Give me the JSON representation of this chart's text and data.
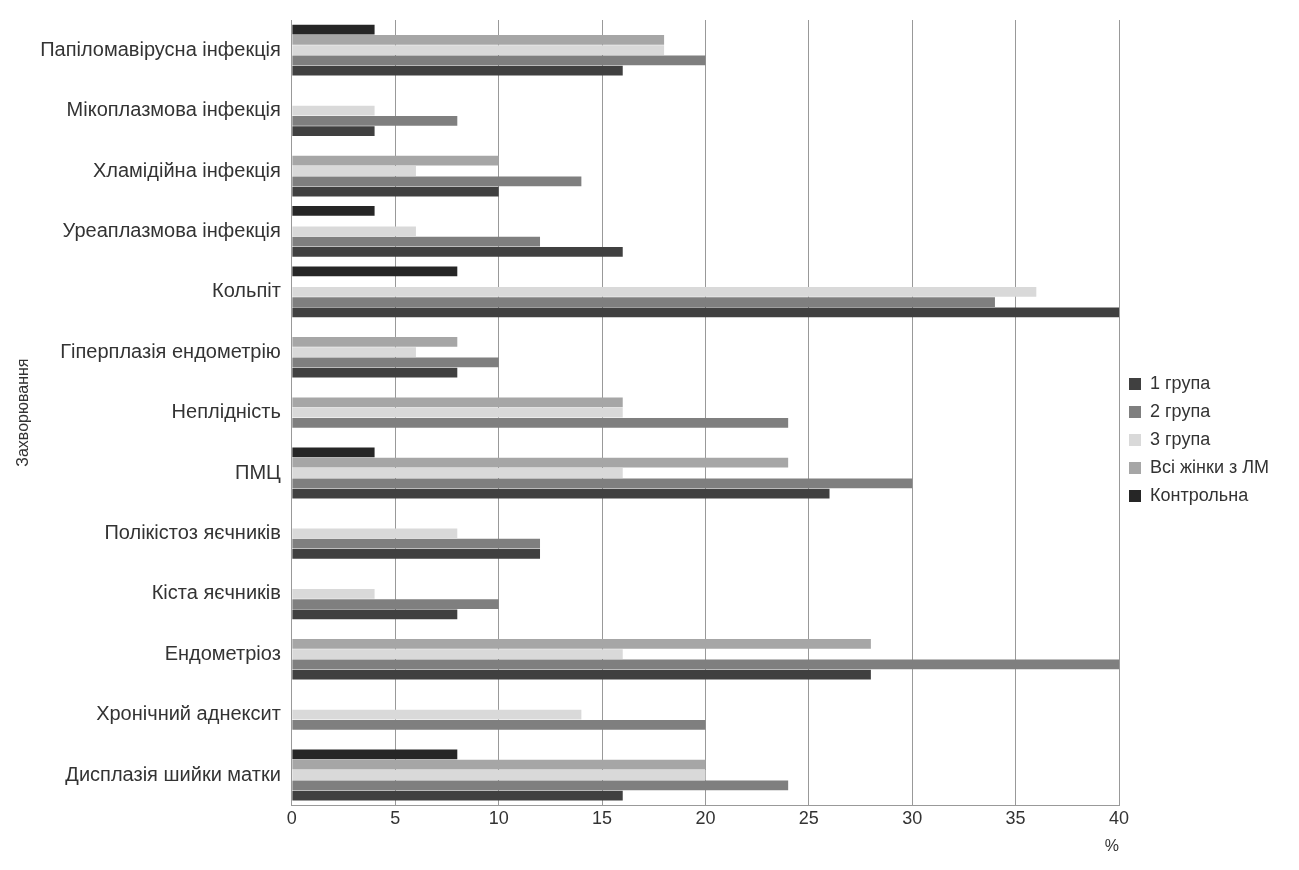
{
  "chart_data": {
    "type": "bar",
    "orientation": "horizontal",
    "ylabel": "Захворювання",
    "xlabel": "%",
    "categories": [
      "Папіломавірусна інфекція",
      "Мікоплазмова інфекція",
      "Хламідійна інфекція",
      "Уреаплазмова інфекція",
      "Кольпіт",
      "Гіперплазія ендометрію",
      "Неплідність",
      "ПМЦ",
      "Полікістоз яєчників",
      "Кіста яєчників",
      "Ендометріоз",
      "Хронічний аднексит",
      "Дисплазія шийки матки"
    ],
    "series": [
      {
        "name": "1 група",
        "color": "#404040",
        "values": [
          16,
          4,
          10,
          16,
          40,
          8,
          0,
          26,
          12,
          8,
          28,
          0,
          16
        ]
      },
      {
        "name": "2 група",
        "color": "#7f7f7f",
        "values": [
          20,
          8,
          14,
          12,
          34,
          10,
          24,
          30,
          12,
          10,
          40,
          20,
          24
        ]
      },
      {
        "name": "3 група",
        "color": "#d9d9d9",
        "values": [
          18,
          4,
          6,
          6,
          36,
          6,
          16,
          16,
          8,
          4,
          16,
          14,
          20
        ]
      },
      {
        "name": "Всі жінки з ЛМ",
        "color": "#a6a6a6",
        "values": [
          18,
          0,
          10,
          0,
          0,
          8,
          16,
          24,
          0,
          0,
          28,
          0,
          20
        ]
      },
      {
        "name": "Контрольна",
        "color": "#262626",
        "values": [
          4,
          0,
          0,
          4,
          8,
          0,
          0,
          4,
          0,
          0,
          0,
          0,
          8
        ]
      }
    ],
    "xlim": [
      0,
      40
    ],
    "xticks": [
      0,
      5,
      10,
      15,
      20,
      25,
      30,
      35,
      40
    ],
    "grid": "x",
    "legend": "right"
  }
}
